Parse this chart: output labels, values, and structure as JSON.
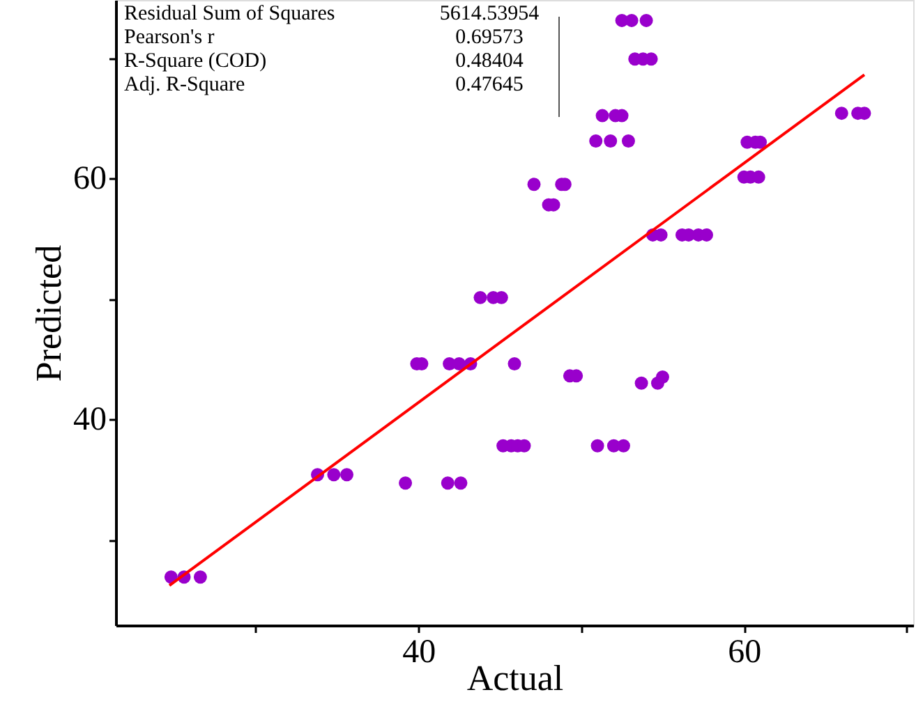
{
  "chart_data": {
    "type": "scatter",
    "xlabel": "Actual",
    "ylabel": "Predicted",
    "xlim": [
      21.4,
      70.4
    ],
    "ylim": [
      22.9,
      74.8
    ],
    "xticks": [
      {
        "value": 30,
        "label": null
      },
      40,
      {
        "value": 50,
        "label": null
      },
      60,
      {
        "value": 70,
        "label": null
      }
    ],
    "yticks": [
      {
        "value": 30,
        "label": null
      },
      40,
      {
        "value": 50,
        "label": null
      },
      60,
      {
        "value": 70,
        "label": null
      }
    ],
    "grid": false,
    "annotations": [
      "Residual Sum of Squares",
      "5614.53954",
      "Pearson's r",
      "0.69573",
      "R-Square (COD)",
      "0.48404",
      "Adj. R-Square",
      "0.47645"
    ],
    "series": [
      {
        "color": "#9900cc",
        "marker": "circle",
        "x": [
          24.8,
          25.6,
          26.6,
          33.8,
          34.8,
          35.6,
          39.2,
          41.8,
          42.6,
          39.9,
          40.2,
          41.9,
          42.5,
          43.2,
          45.9,
          43.8,
          44.6,
          45.1,
          45.2,
          45.7,
          46.1,
          46.5,
          47.1,
          48.8,
          49.0,
          48.0,
          48.3,
          51.0,
          52.0,
          52.6,
          53.7,
          54.7,
          55.0,
          49.3,
          49.7,
          50.9,
          51.8,
          52.9,
          51.3,
          52.1,
          52.5,
          53.3,
          53.8,
          54.3,
          52.5,
          53.1,
          54.0,
          54.4,
          54.9,
          56.2,
          56.6,
          57.2,
          57.7,
          60.2,
          60.7,
          61.0,
          60.0,
          60.4,
          60.9,
          66.0,
          67.0,
          67.4
        ],
        "values": [
          26.9,
          26.9,
          26.9,
          35.4,
          35.4,
          35.4,
          34.7,
          34.7,
          34.7,
          44.6,
          44.6,
          44.6,
          44.6,
          44.6,
          44.6,
          50.1,
          50.1,
          50.1,
          37.8,
          37.8,
          37.8,
          37.8,
          59.5,
          59.5,
          59.5,
          57.8,
          57.8,
          37.8,
          37.8,
          37.8,
          43.0,
          43.0,
          43.5,
          43.6,
          43.6,
          63.1,
          63.1,
          63.1,
          65.2,
          65.2,
          65.2,
          69.9,
          69.9,
          69.9,
          73.1,
          73.1,
          73.1,
          55.3,
          55.3,
          55.3,
          55.3,
          55.3,
          55.3,
          63.0,
          63.0,
          63.0,
          60.1,
          60.1,
          60.1,
          65.4,
          65.4,
          65.4
        ]
      },
      {
        "type": "line",
        "color": "#ff0000",
        "marker": "none",
        "x": [
          24.7,
          67.4
        ],
        "values": [
          26.2,
          68.6
        ]
      }
    ]
  }
}
